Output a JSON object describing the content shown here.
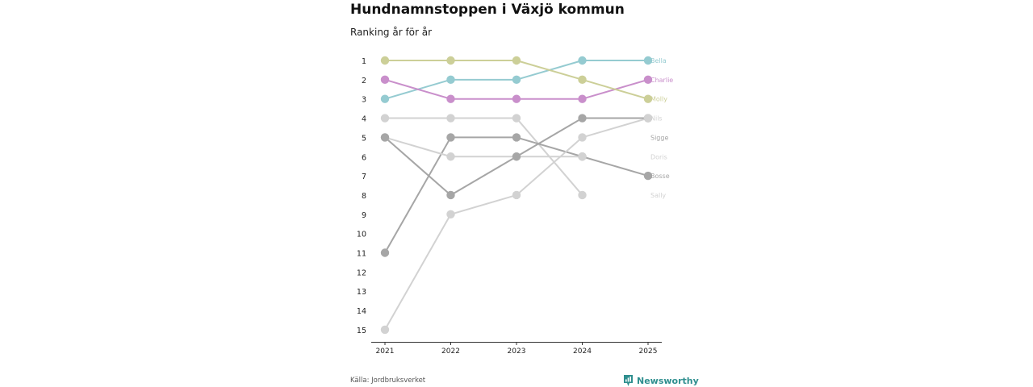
{
  "header": {
    "title": "Hundnamnstoppen i Växjö kommun",
    "subtitle": "Ranking år för år"
  },
  "footer": {
    "source": "Källa: Jordbruksverket",
    "brand": "Newsworthy"
  },
  "colors": {
    "Bella": "#95cbd1",
    "Charlie": "#c98fcb",
    "Molly": "#cccf98",
    "Nils": "#d2d2d2",
    "Sigge": "#a6a6a6",
    "Doris": "#d2d2d2",
    "Bosse": "#a6a6a6",
    "Sally": "#d2d2d2",
    "axis": "#333333",
    "brand": "#2f8f8f"
  },
  "chart_data": {
    "type": "line",
    "title": "Hundnamnstoppen i Växjö kommun",
    "subtitle": "Ranking år för år",
    "x": [
      "2021",
      "2022",
      "2023",
      "2024",
      "2025"
    ],
    "y_ticks": [
      "1",
      "2",
      "3",
      "4",
      "5",
      "6",
      "7",
      "8",
      "9",
      "10",
      "11",
      "12",
      "13",
      "14",
      "15"
    ],
    "ylim": [
      1,
      15
    ],
    "y_inverted": true,
    "xlabel": "",
    "ylabel": "",
    "series": [
      {
        "name": "Bella",
        "values": [
          3,
          2,
          2,
          1,
          1
        ]
      },
      {
        "name": "Charlie",
        "values": [
          2,
          3,
          3,
          3,
          2
        ]
      },
      {
        "name": "Molly",
        "values": [
          1,
          1,
          1,
          2,
          3
        ]
      },
      {
        "name": "Nils",
        "values": [
          4,
          4,
          4,
          8,
          null
        ]
      },
      {
        "name": "Sigge",
        "values": [
          11,
          5,
          5,
          6,
          7
        ]
      },
      {
        "name": "Doris",
        "values": [
          5,
          6,
          6,
          6,
          null
        ]
      },
      {
        "name": "Bosse",
        "values": [
          5,
          8,
          6,
          4,
          4
        ]
      },
      {
        "name": "Sally",
        "values": [
          15,
          9,
          8,
          5,
          4
        ]
      }
    ],
    "end_labels": [
      {
        "name": "Bella",
        "rank": 1
      },
      {
        "name": "Charlie",
        "rank": 2
      },
      {
        "name": "Molly",
        "rank": 3
      },
      {
        "name": "Nils",
        "rank": 4
      },
      {
        "name": "Sigge",
        "rank": 5
      },
      {
        "name": "Doris",
        "rank": 6
      },
      {
        "name": "Bosse",
        "rank": 7
      },
      {
        "name": "Sally",
        "rank": 8
      }
    ]
  }
}
